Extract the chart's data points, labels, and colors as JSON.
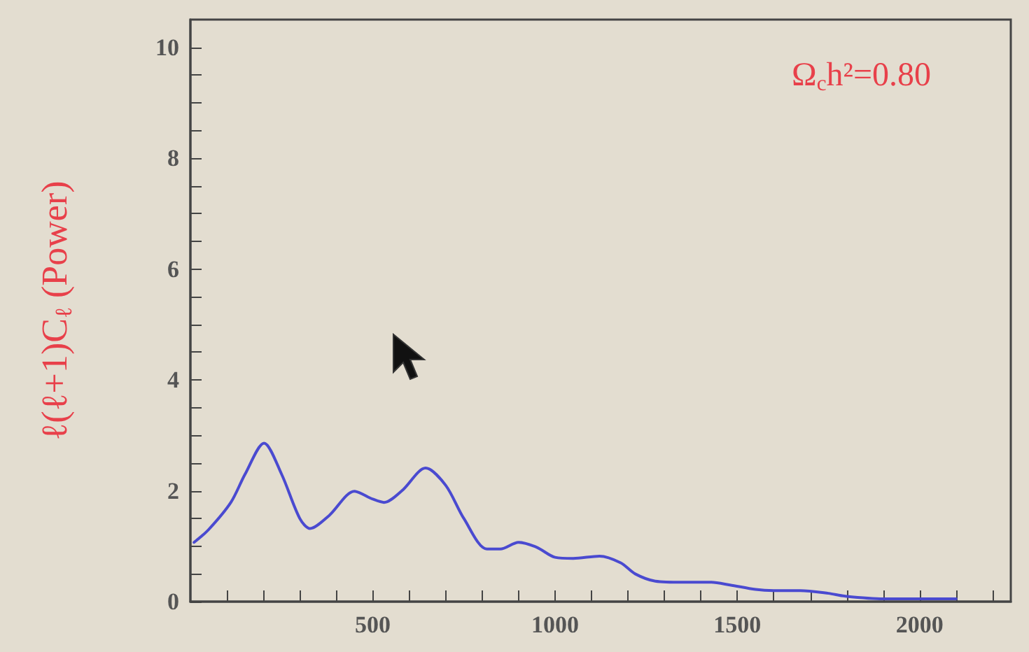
{
  "chart_data": {
    "type": "line",
    "ylabel": "ℓ(ℓ+1)C$_{ℓ}$ (Power)",
    "annotations": [
      "Ω$_{c}$h²=0.80"
    ],
    "series": [
      {
        "color": "#4a4ad0",
        "x": [
          10,
          50,
          111,
          150,
          202,
          250,
          300,
          328,
          380,
          450,
          500,
          531,
          580,
          645,
          700,
          750,
          813,
          850,
          900,
          950,
          1000,
          1050,
          1122,
          1180,
          1220,
          1275,
          1350,
          1427,
          1480,
          1550,
          1600,
          1672,
          1750,
          1794,
          1900,
          2000,
          2100
        ],
        "values": [
          1.07,
          1.3,
          1.79,
          2.3,
          2.86,
          2.3,
          1.5,
          1.32,
          1.55,
          1.99,
          1.85,
          1.79,
          2.0,
          2.41,
          2.1,
          1.5,
          0.95,
          0.95,
          1.07,
          0.98,
          0.8,
          0.78,
          0.82,
          0.7,
          0.5,
          0.37,
          0.35,
          0.35,
          0.3,
          0.22,
          0.2,
          0.2,
          0.15,
          0.1,
          0.05,
          0.05,
          0.05
        ]
      }
    ],
    "xlim": [
      0,
      2250
    ],
    "xticks": [
      {
        "value": 100,
        "label": null
      },
      {
        "value": 200,
        "label": null
      },
      {
        "value": 300,
        "label": null
      },
      {
        "value": 400,
        "label": null
      },
      500,
      {
        "value": 600,
        "label": null
      },
      {
        "value": 700,
        "label": null
      },
      {
        "value": 800,
        "label": null
      },
      {
        "value": 900,
        "label": null
      },
      1000,
      {
        "value": 1100,
        "label": null
      },
      {
        "value": 1200,
        "label": null
      },
      {
        "value": 1300,
        "label": null
      },
      {
        "value": 1400,
        "label": null
      },
      1500,
      {
        "value": 1600,
        "label": null
      },
      {
        "value": 1700,
        "label": null
      },
      {
        "value": 1800,
        "label": null
      },
      {
        "value": 1900,
        "label": null
      },
      2000,
      {
        "value": 2100,
        "label": null
      },
      {
        "value": 2200,
        "label": null
      }
    ],
    "ylim": [
      0,
      10.5
    ],
    "yticks": [
      0,
      {
        "value": 0.5,
        "label": null
      },
      {
        "value": 1,
        "label": null
      },
      {
        "value": 1.5,
        "label": null
      },
      2,
      {
        "value": 2.5,
        "label": null
      },
      {
        "value": 3,
        "label": null
      },
      {
        "value": 3.5,
        "label": null
      },
      4,
      {
        "value": 4.5,
        "label": null
      },
      {
        "value": 5,
        "label": null
      },
      {
        "value": 5.5,
        "label": null
      },
      6,
      {
        "value": 6.5,
        "label": null
      },
      {
        "value": 7,
        "label": null
      },
      {
        "value": 7.5,
        "label": null
      },
      8,
      {
        "value": 8.5,
        "label": null
      },
      {
        "value": 9,
        "label": null
      },
      {
        "value": 9.5,
        "label": null
      },
      10
    ],
    "grid": false,
    "marker": "none",
    "line_style": "solid"
  }
}
